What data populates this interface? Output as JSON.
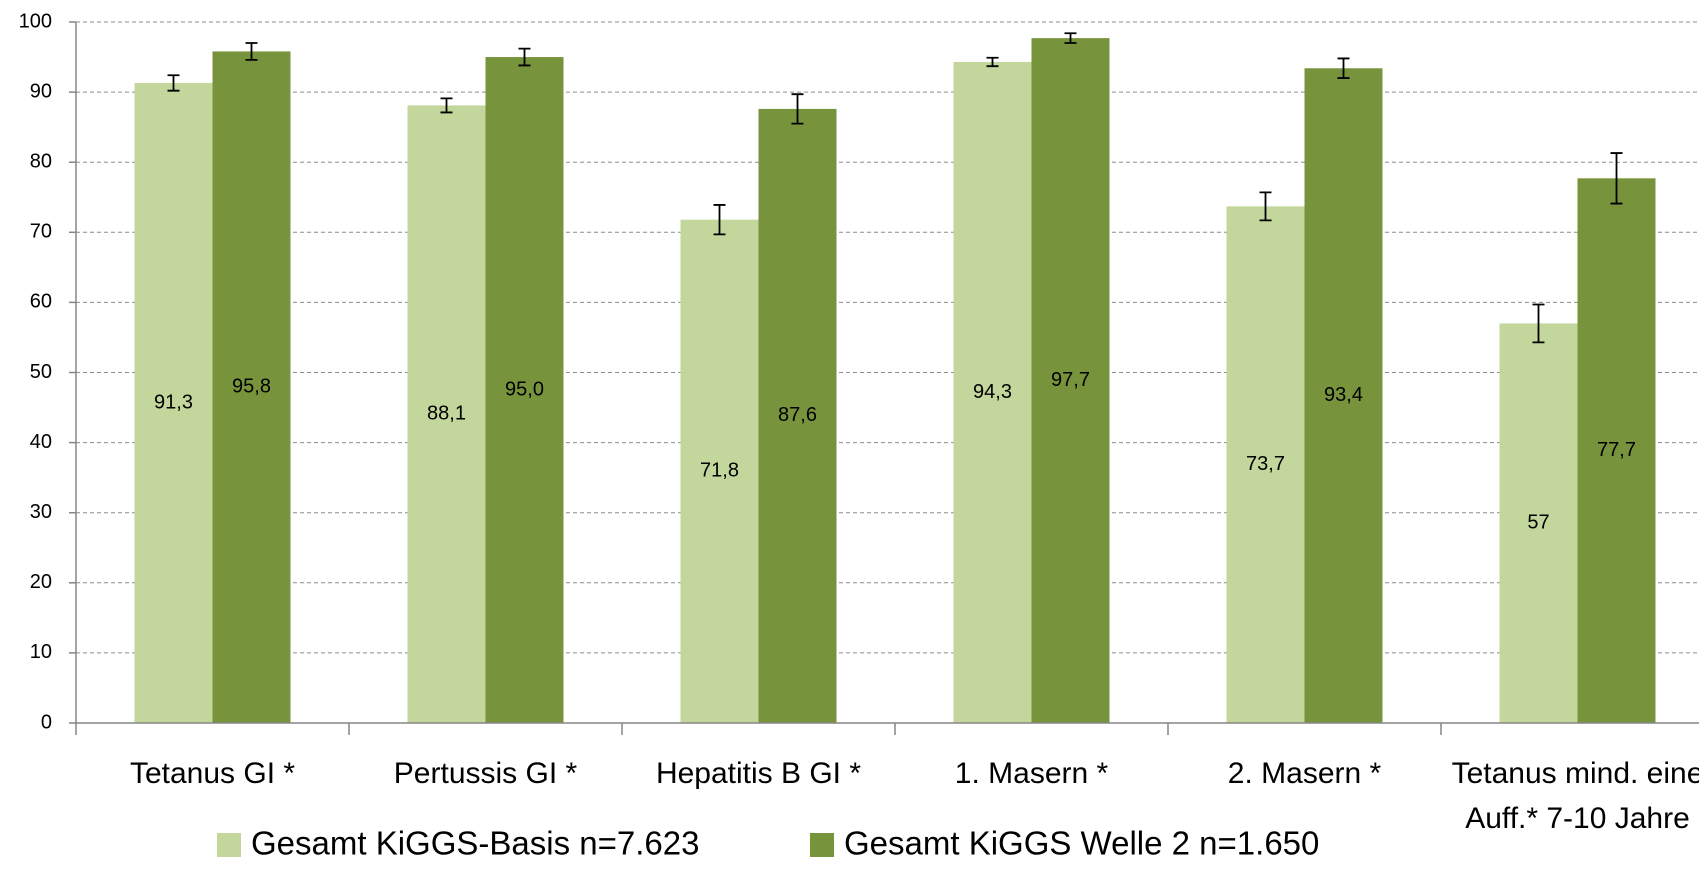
{
  "chart_data": {
    "type": "bar",
    "categories": [
      "Tetanus GI *",
      "Pertussis GI *",
      "Hepatitis B GI *",
      "1. Masern *",
      "2. Masern *",
      "Tetanus mind. eine Auff.* 7-10 Jahre"
    ],
    "series": [
      {
        "name": "Gesamt KiGGS-Basis n=7.623",
        "color": "#c3d69b",
        "values": [
          91.3,
          88.1,
          71.8,
          94.3,
          73.7,
          57
        ],
        "value_labels": [
          "91,3",
          "88,1",
          "71,8",
          "94,3",
          "73,7",
          "57"
        ],
        "errors": [
          1.1,
          1.0,
          2.1,
          0.6,
          2.0,
          2.7
        ]
      },
      {
        "name": "Gesamt KiGGS Welle 2 n=1.650",
        "color": "#77933c",
        "values": [
          95.8,
          95.0,
          87.6,
          97.7,
          93.4,
          77.7
        ],
        "value_labels": [
          "95,8",
          "95,0",
          "87,6",
          "97,7",
          "93,4",
          "77,7"
        ],
        "errors": [
          1.2,
          1.2,
          2.1,
          0.7,
          1.4,
          3.6
        ]
      }
    ],
    "ylim": [
      0,
      100
    ],
    "yticks": [
      0,
      10,
      20,
      30,
      40,
      50,
      60,
      70,
      80,
      90,
      100
    ],
    "grid": true,
    "legend": "bottom"
  }
}
